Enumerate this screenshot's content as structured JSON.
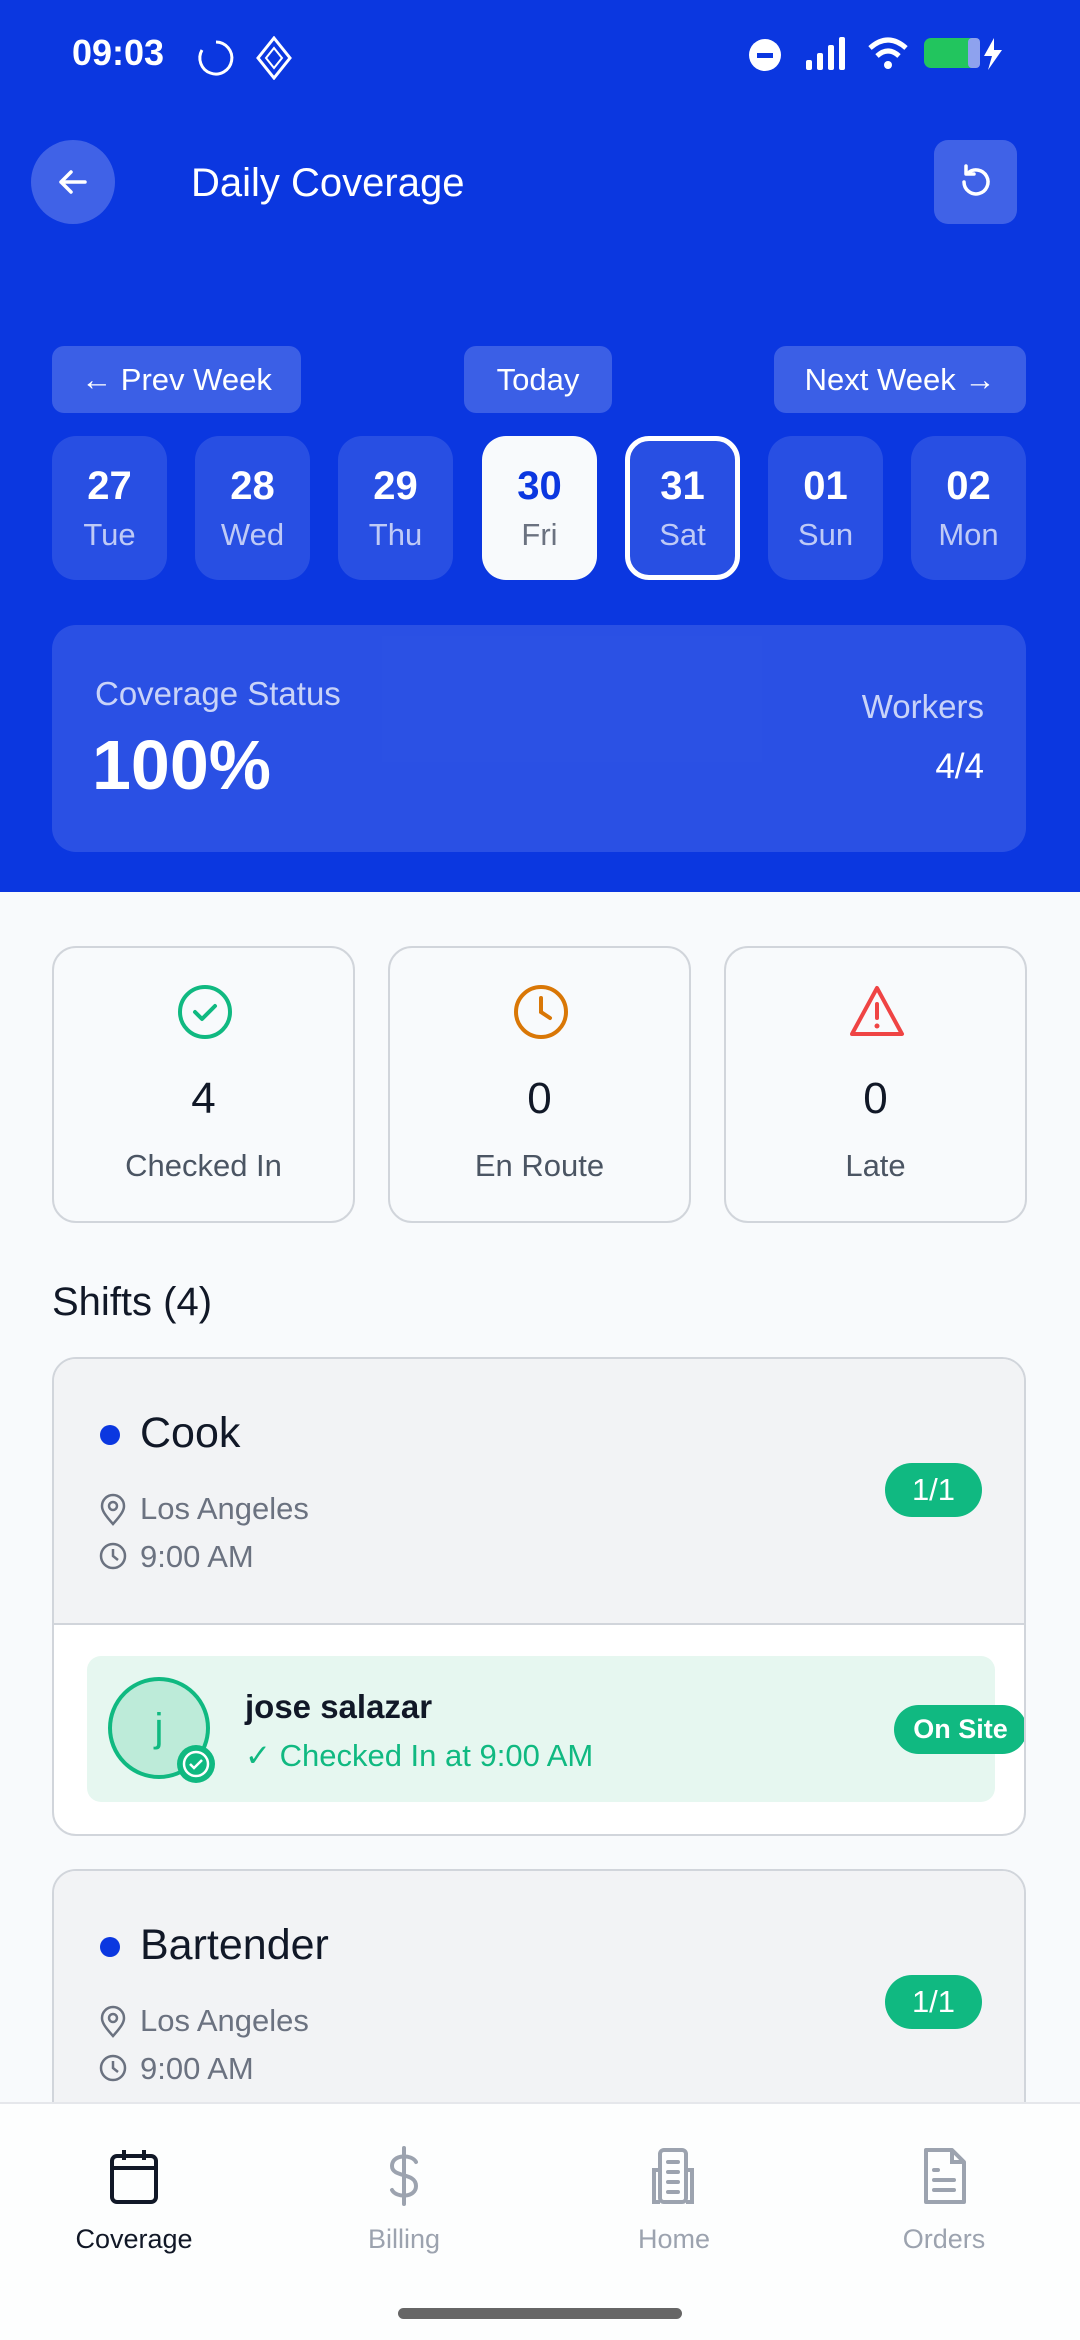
{
  "status_bar": {
    "time": "09:03"
  },
  "header": {
    "title": "Daily Coverage"
  },
  "week_nav": {
    "prev": "← Prev Week",
    "today": "Today",
    "next": "Next Week →"
  },
  "days": [
    {
      "num": "27",
      "dow": "Tue"
    },
    {
      "num": "28",
      "dow": "Wed"
    },
    {
      "num": "29",
      "dow": "Thu"
    },
    {
      "num": "30",
      "dow": "Fri",
      "selected": true
    },
    {
      "num": "31",
      "dow": "Sat",
      "today": true
    },
    {
      "num": "01",
      "dow": "Sun"
    },
    {
      "num": "02",
      "dow": "Mon"
    }
  ],
  "coverage": {
    "label": "Coverage Status",
    "value": "100%",
    "workers_label": "Workers",
    "workers_value": "4/4"
  },
  "stats": [
    {
      "value": "4",
      "label": "Checked In",
      "icon": "check-circle-icon",
      "color": "#10b981"
    },
    {
      "value": "0",
      "label": "En Route",
      "icon": "clock-icon",
      "color": "#d97706"
    },
    {
      "value": "0",
      "label": "Late",
      "icon": "alert-triangle-icon",
      "color": "#ef4444"
    }
  ],
  "shifts_title": "Shifts (4)",
  "shifts": [
    {
      "title": "Cook",
      "location": "Los Angeles",
      "time": "9:00 AM",
      "filled": "1/1",
      "worker": {
        "initial": "j",
        "name": "jose salazar",
        "status": "✓ Checked In at 9:00 AM",
        "badge": "On Site"
      }
    },
    {
      "title": "Bartender",
      "location": "Los Angeles",
      "time": "9:00 AM",
      "filled": "1/1"
    }
  ],
  "bottom_nav": [
    {
      "label": "Coverage",
      "active": true
    },
    {
      "label": "Billing"
    },
    {
      "label": "Home"
    },
    {
      "label": "Orders"
    }
  ],
  "colors": {
    "primary": "#0b37e0",
    "success": "#10b981",
    "warning": "#d97706",
    "danger": "#ef4444"
  }
}
